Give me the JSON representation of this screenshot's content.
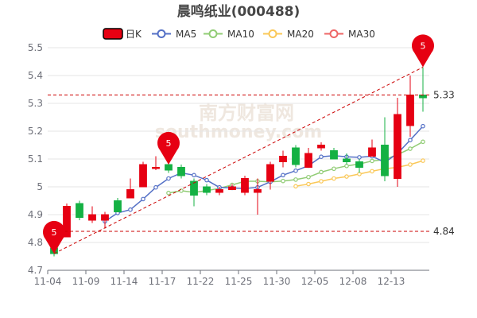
{
  "chart_data": {
    "type": "candlestick",
    "title": "晨鸣纸业(000488)",
    "watermark": {
      "top": "南方财富网",
      "bottom": "southmoney.com"
    },
    "legend": [
      {
        "name": "日K",
        "color": "#e60012"
      },
      {
        "name": "MA5",
        "color": "#5470c6"
      },
      {
        "name": "MA10",
        "color": "#91cc75"
      },
      {
        "name": "MA20",
        "color": "#fac858"
      },
      {
        "name": "MA30",
        "color": "#ee6666"
      }
    ],
    "legend_position": "top-center",
    "colors": {
      "up": "#e60012",
      "down": "#14b143",
      "ref_line": "#cc0000",
      "marker": "#e60012",
      "grid": "#e6e6e6"
    },
    "ylim": [
      4.7,
      5.5
    ],
    "y_ticks": [
      "4.7",
      "4.8",
      "4.9",
      "5",
      "5.1",
      "5.2",
      "5.3",
      "5.4",
      "5.5"
    ],
    "x_tick_labels": [
      {
        "index": 0,
        "label": "11-04"
      },
      {
        "index": 3,
        "label": "11-09"
      },
      {
        "index": 6,
        "label": "11-14"
      },
      {
        "index": 9,
        "label": "11-17"
      },
      {
        "index": 12,
        "label": "11-22"
      },
      {
        "index": 15,
        "label": "11-25"
      },
      {
        "index": 18,
        "label": "11-30"
      },
      {
        "index": 21,
        "label": "12-05"
      },
      {
        "index": 24,
        "label": "12-08"
      },
      {
        "index": 27,
        "label": "12-13"
      }
    ],
    "candles": [
      {
        "open": 4.78,
        "close": 4.76,
        "high": 4.8,
        "low": 4.75
      },
      {
        "open": 4.82,
        "close": 4.93,
        "high": 4.94,
        "low": 4.82
      },
      {
        "open": 4.94,
        "close": 4.89,
        "high": 4.95,
        "low": 4.88
      },
      {
        "open": 4.88,
        "close": 4.9,
        "high": 4.93,
        "low": 4.87
      },
      {
        "open": 4.88,
        "close": 4.9,
        "high": 4.91,
        "low": 4.85
      },
      {
        "open": 4.95,
        "close": 4.91,
        "high": 4.96,
        "low": 4.91
      },
      {
        "open": 4.96,
        "close": 4.99,
        "high": 5.03,
        "low": 4.96
      },
      {
        "open": 5.0,
        "close": 5.08,
        "high": 5.09,
        "low": 5.0
      },
      {
        "open": 5.07,
        "close": 5.07,
        "high": 5.11,
        "low": 5.06
      },
      {
        "open": 5.08,
        "close": 5.06,
        "high": 5.1,
        "low": 5.05
      },
      {
        "open": 5.07,
        "close": 5.04,
        "high": 5.08,
        "low": 5.03
      },
      {
        "open": 5.02,
        "close": 4.97,
        "high": 5.03,
        "low": 4.93
      },
      {
        "open": 5.0,
        "close": 4.98,
        "high": 5.01,
        "low": 4.97
      },
      {
        "open": 4.98,
        "close": 4.99,
        "high": 5.0,
        "low": 4.97
      },
      {
        "open": 4.99,
        "close": 5.0,
        "high": 5.01,
        "low": 4.99
      },
      {
        "open": 4.98,
        "close": 5.03,
        "high": 5.04,
        "low": 4.97
      },
      {
        "open": 4.98,
        "close": 4.99,
        "high": 5.03,
        "low": 4.9
      },
      {
        "open": 5.02,
        "close": 5.08,
        "high": 5.09,
        "low": 4.99
      },
      {
        "open": 5.09,
        "close": 5.11,
        "high": 5.13,
        "low": 5.07
      },
      {
        "open": 5.14,
        "close": 5.08,
        "high": 5.15,
        "low": 5.07
      },
      {
        "open": 5.07,
        "close": 5.12,
        "high": 5.14,
        "low": 5.07
      },
      {
        "open": 5.14,
        "close": 5.15,
        "high": 5.16,
        "low": 5.13
      },
      {
        "open": 5.13,
        "close": 5.1,
        "high": 5.14,
        "low": 5.1
      },
      {
        "open": 5.1,
        "close": 5.09,
        "high": 5.12,
        "low": 5.08
      },
      {
        "open": 5.09,
        "close": 5.07,
        "high": 5.1,
        "low": 5.05
      },
      {
        "open": 5.11,
        "close": 5.14,
        "high": 5.17,
        "low": 5.11
      },
      {
        "open": 5.15,
        "close": 5.04,
        "high": 5.25,
        "low": 5.02
      },
      {
        "open": 5.03,
        "close": 5.26,
        "high": 5.32,
        "low": 5.0
      },
      {
        "open": 5.22,
        "close": 5.33,
        "high": 5.4,
        "low": 5.18
      },
      {
        "open": 5.33,
        "close": 5.32,
        "high": 5.43,
        "low": 5.27
      }
    ],
    "ma5": [
      null,
      null,
      null,
      null,
      4.876,
      4.906,
      4.918,
      4.956,
      4.998,
      5.03,
      5.05,
      5.042,
      5.024,
      4.998,
      4.996,
      4.994,
      4.998,
      5.018,
      5.042,
      5.058,
      5.076,
      5.108,
      5.112,
      5.108,
      5.106,
      5.11,
      5.088,
      5.12,
      5.168,
      5.218
    ],
    "ma10": [
      null,
      null,
      null,
      null,
      null,
      null,
      null,
      null,
      null,
      4.978,
      4.986,
      4.98,
      4.986,
      4.995,
      5.007,
      5.02,
      5.02,
      5.018,
      5.021,
      5.026,
      5.035,
      5.053,
      5.065,
      5.075,
      5.082,
      5.093,
      5.098,
      5.116,
      5.137,
      5.162
    ],
    "ma20": [
      null,
      null,
      null,
      null,
      null,
      null,
      null,
      null,
      null,
      null,
      null,
      null,
      null,
      null,
      null,
      null,
      null,
      null,
      null,
      5.002,
      5.01,
      5.02,
      5.03,
      5.037,
      5.046,
      5.056,
      5.065,
      5.07,
      5.08,
      5.094
    ],
    "ref_lines": [
      {
        "value": 5.33,
        "label": "5.33"
      },
      {
        "value": 4.84,
        "label": "4.84"
      }
    ],
    "markers": [
      {
        "index": 0,
        "value": 4.76,
        "label": "5",
        "tip": "below"
      },
      {
        "index": 9,
        "value": 5.08,
        "label": "5",
        "tip": "below"
      },
      {
        "index": 29,
        "value": 5.43,
        "label": "5",
        "tip": "below"
      }
    ],
    "trend_line": {
      "from": {
        "index": 0,
        "value": 4.76
      },
      "to": {
        "index": 29,
        "value": 5.43
      }
    }
  }
}
